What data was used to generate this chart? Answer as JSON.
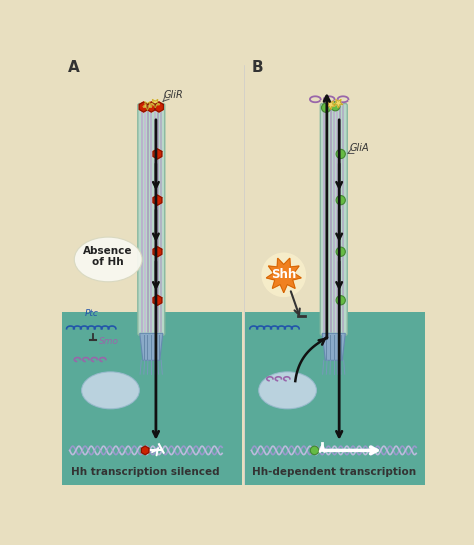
{
  "bg_color": "#e8dfc0",
  "teal_deep": "#4a9e8e",
  "teal_mid": "#5aaa99",
  "teal_light": "#7abfb0",
  "membrane_color": "#7ab8a8",
  "cilium_outer": "#b8d8c8",
  "cilium_edge": "#88b8a0",
  "mt_colors": [
    "#b8a8cc",
    "#c8b4d8",
    "#a89abc",
    "#b8a8cc",
    "#c0b0d0",
    "#a89abc",
    "#b0a8c4"
  ],
  "basal_color": "#8aaac8",
  "red_hex": "#cc2200",
  "red_hex_ec": "#881100",
  "green_gli": "#66bb44",
  "green_gli_ec": "#448833",
  "yellow_star": "#f0d868",
  "orange_burst": "#f08020",
  "purple": "#9966aa",
  "blue_ptc": "#2255aa",
  "blob_face": "#c8d8e8",
  "blob_edge": "#9abace",
  "dna1": "#9999cc",
  "dna2": "#bbbbdd",
  "arrow_col": "#111111",
  "white": "#ffffff",
  "panel_A": "A",
  "panel_B": "B",
  "label_GliR": "GliR",
  "label_GliA": "GliA",
  "label_Ptc": "Ptc",
  "label_Smo": "Smo",
  "label_Shh": "Shh",
  "label_absence": "Absence\nof Hh",
  "label_bottom_A": "Hh transcription silenced",
  "label_bottom_B": "Hh-dependent transcription"
}
